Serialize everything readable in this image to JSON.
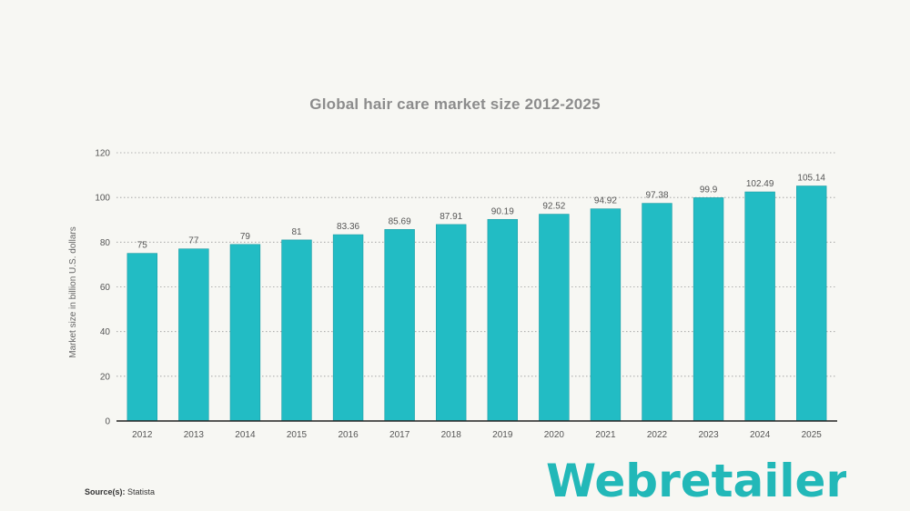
{
  "chart_data": {
    "type": "bar",
    "title": "Global hair care market size 2012-2025",
    "ylabel": "Market size in billion U.S. dollars",
    "xlabel": "",
    "categories": [
      "2012",
      "2013",
      "2014",
      "2015",
      "2016",
      "2017",
      "2018",
      "2019",
      "2020",
      "2021",
      "2022",
      "2023",
      "2024",
      "2025"
    ],
    "values": [
      75,
      77,
      79,
      81,
      83.36,
      85.69,
      87.91,
      90.19,
      92.52,
      94.92,
      97.38,
      99.9,
      102.49,
      105.14
    ],
    "value_labels": [
      "75",
      "77",
      "79",
      "81",
      "83.36",
      "85.69",
      "87.91",
      "90.19",
      "92.52",
      "94.92",
      "97.38",
      "99.9",
      "102.49",
      "105.14"
    ],
    "ylim": [
      0,
      120
    ],
    "yticks": [
      "0",
      "20",
      "40",
      "60",
      "80",
      "100",
      "120"
    ],
    "grid": true,
    "bar_color": "#22bcc4"
  },
  "source": {
    "label": "Source(s):",
    "value": "Statista"
  },
  "logo": {
    "text": "Webretailer",
    "color": "#22b8b8"
  }
}
